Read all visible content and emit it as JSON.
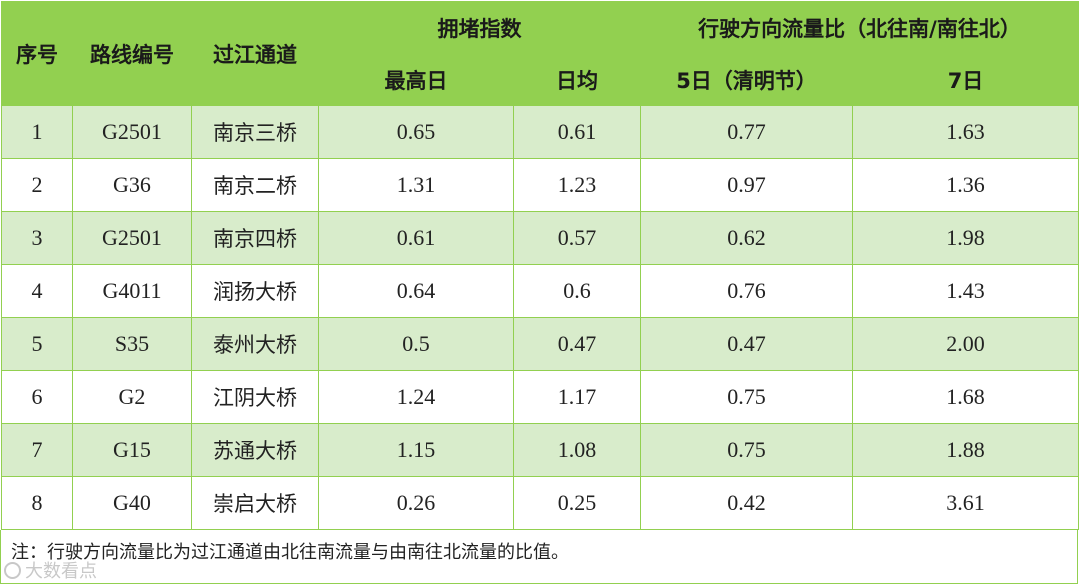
{
  "headers": {
    "seq": "序号",
    "route": "路线编号",
    "crossing": "过江通道",
    "congestion": "拥堵指数",
    "congestion_peak": "最高日",
    "congestion_avg": "日均",
    "flow_ratio": "行驶方向流量比（北往南/南往北）",
    "flow_day5": "5日（清明节）",
    "flow_day7": "7日"
  },
  "rows": [
    {
      "seq": "1",
      "route": "G2501",
      "crossing": "南京三桥",
      "peak": "0.65",
      "avg": "0.61",
      "d5": "0.77",
      "d7": "1.63"
    },
    {
      "seq": "2",
      "route": "G36",
      "crossing": "南京二桥",
      "peak": "1.31",
      "avg": "1.23",
      "d5": "0.97",
      "d7": "1.36"
    },
    {
      "seq": "3",
      "route": "G2501",
      "crossing": "南京四桥",
      "peak": "0.61",
      "avg": "0.57",
      "d5": "0.62",
      "d7": "1.98"
    },
    {
      "seq": "4",
      "route": "G4011",
      "crossing": "润扬大桥",
      "peak": "0.64",
      "avg": "0.6",
      "d5": "0.76",
      "d7": "1.43"
    },
    {
      "seq": "5",
      "route": "S35",
      "crossing": "泰州大桥",
      "peak": "0.5",
      "avg": "0.47",
      "d5": "0.47",
      "d7": "2.00"
    },
    {
      "seq": "6",
      "route": "G2",
      "crossing": "江阴大桥",
      "peak": "1.24",
      "avg": "1.17",
      "d5": "0.75",
      "d7": "1.68"
    },
    {
      "seq": "7",
      "route": "G15",
      "crossing": "苏通大桥",
      "peak": "1.15",
      "avg": "1.08",
      "d5": "0.75",
      "d7": "1.88"
    },
    {
      "seq": "8",
      "route": "G40",
      "crossing": "崇启大桥",
      "peak": "0.26",
      "avg": "0.25",
      "d5": "0.42",
      "d7": "3.61"
    }
  ],
  "note": "注：行驶方向流量比为过江通道由北往南流量与由南往北流量的比值。",
  "watermark": "大数看点",
  "colors": {
    "header": "#92d050",
    "stripe": "#d8eccb",
    "border": "#92d050"
  }
}
